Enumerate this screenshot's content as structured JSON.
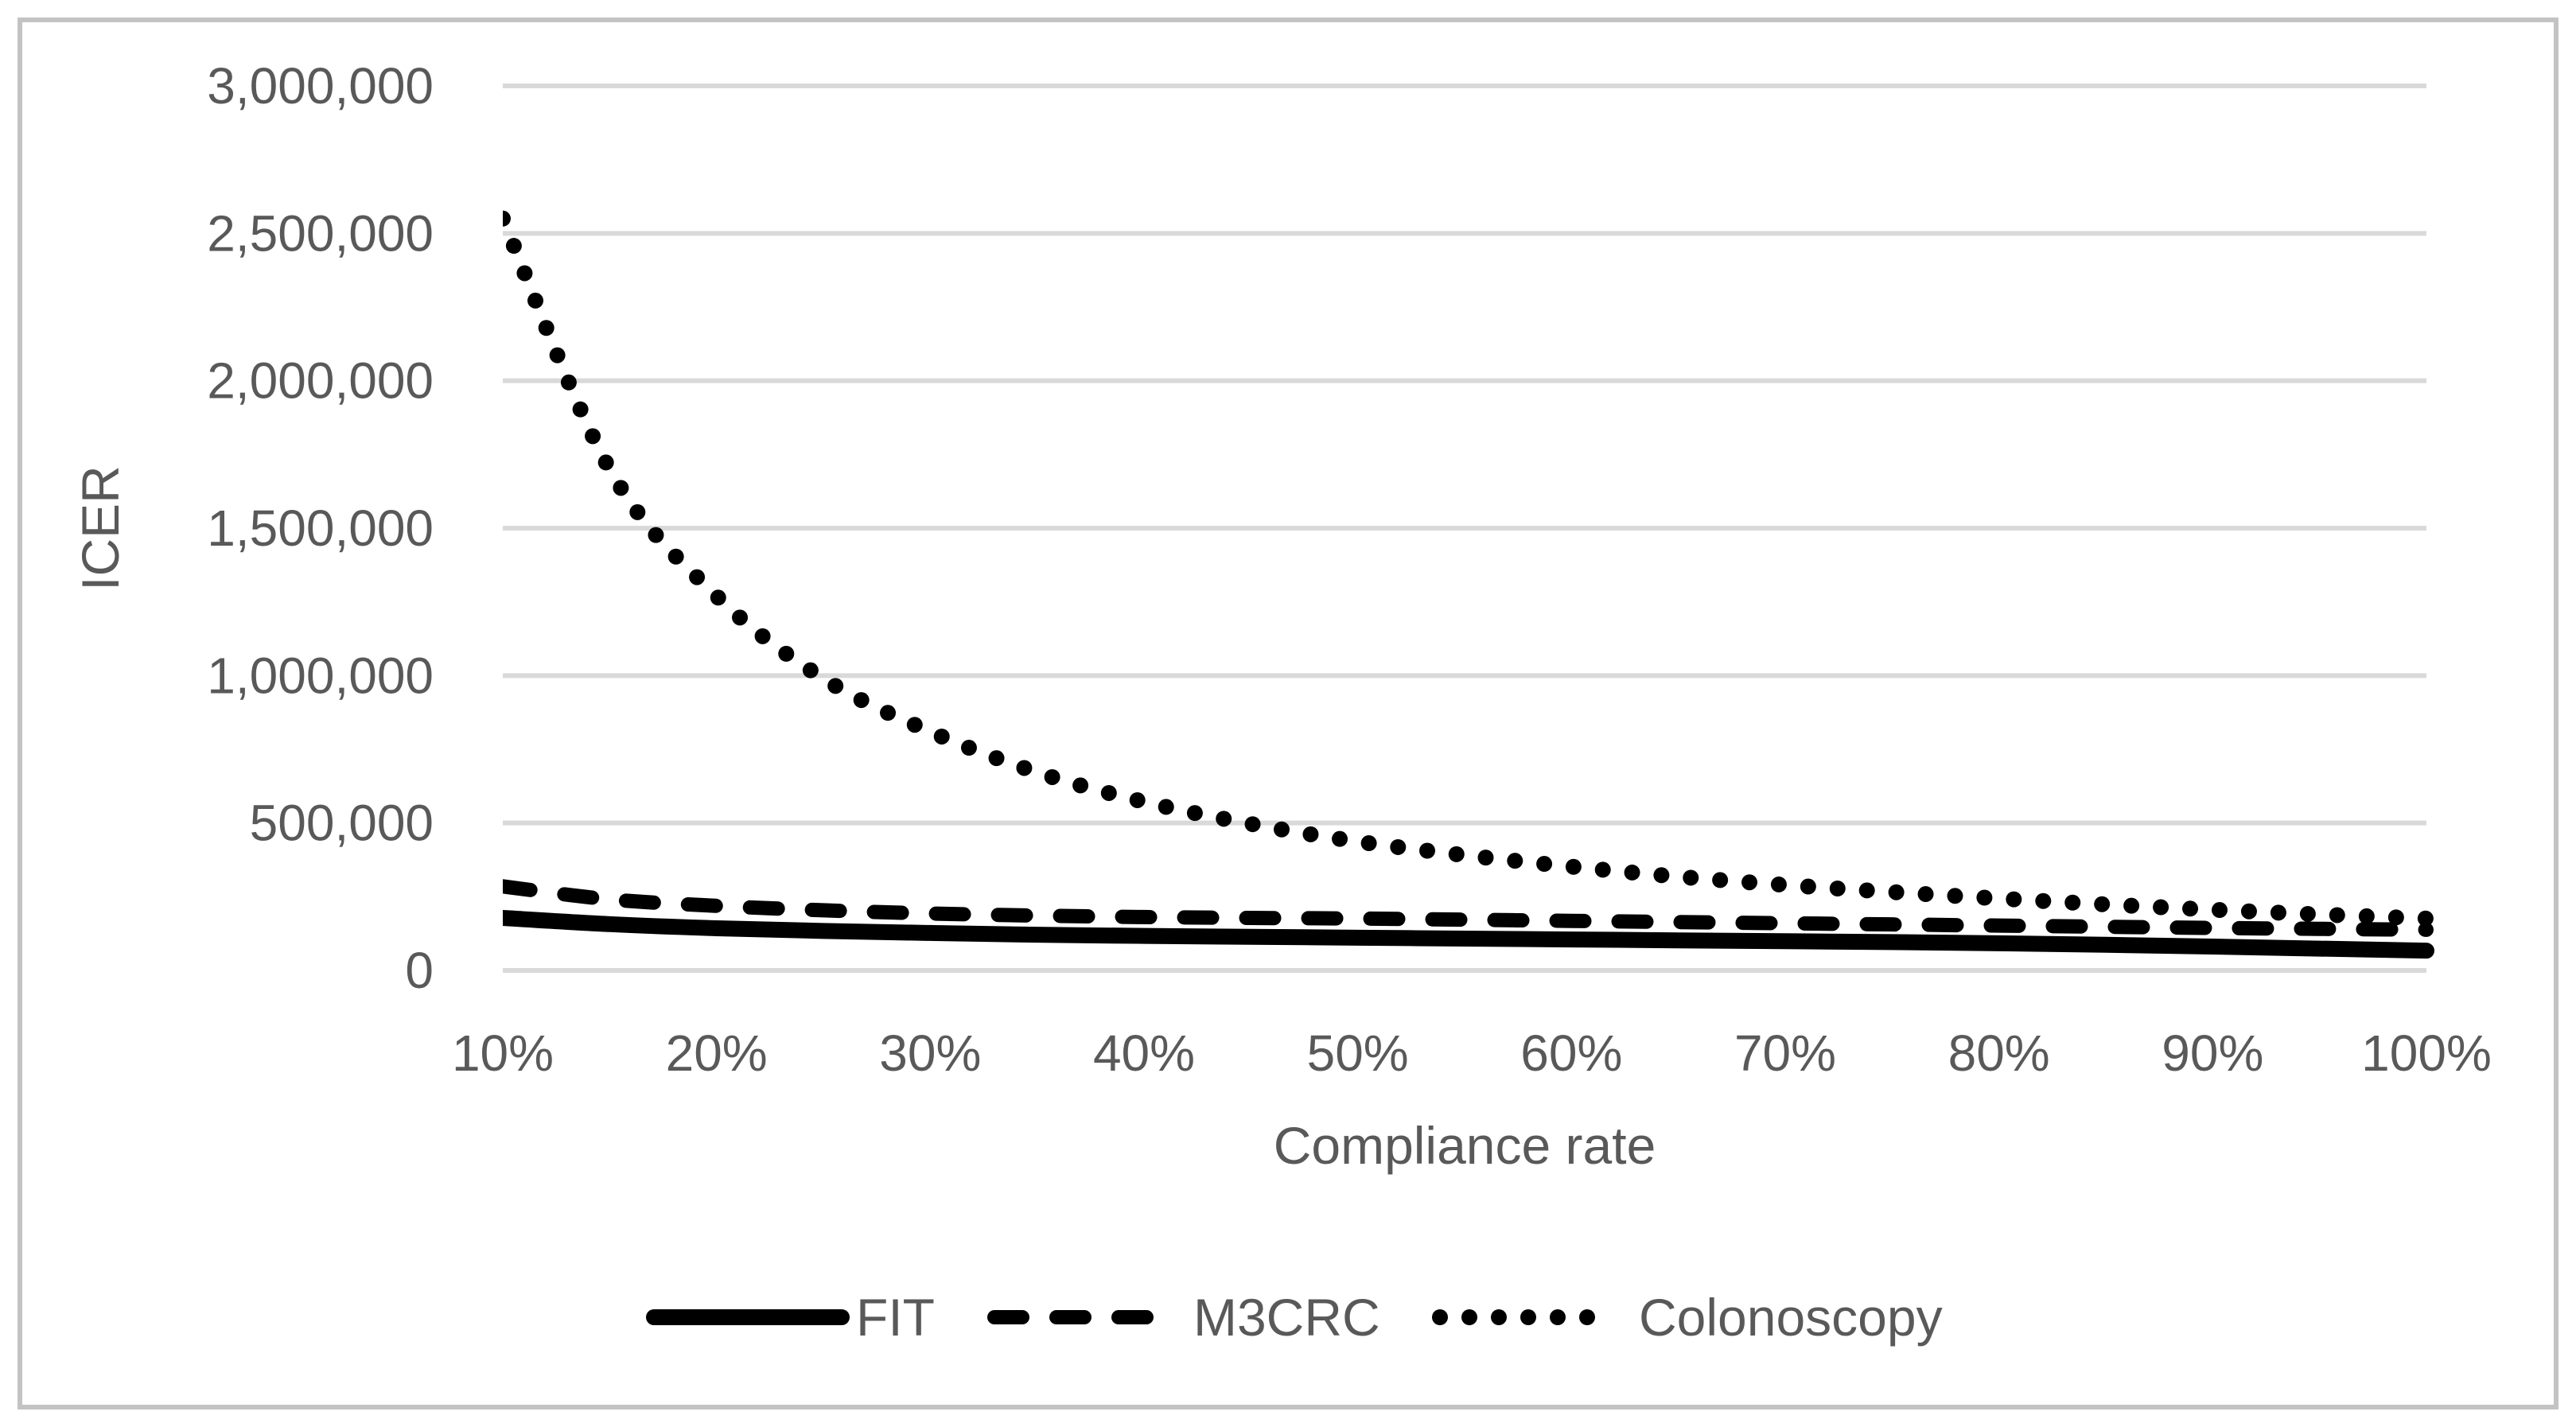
{
  "figure": {
    "background": "#ffffff",
    "border_color": "#c3c3c3",
    "text_color": "#595959",
    "gridline_color": "#d9d9d9",
    "series_color": "#000000"
  },
  "chart_data": {
    "type": "line",
    "title": "",
    "xlabel": "Compliance rate",
    "ylabel": "ICER",
    "x_axis": {
      "ticks": [
        "10%",
        "20%",
        "30%",
        "40%",
        "50%",
        "60%",
        "70%",
        "80%",
        "90%",
        "100%"
      ],
      "tick_pcts": [
        10,
        20,
        30,
        40,
        50,
        60,
        70,
        80,
        90,
        100
      ]
    },
    "y_axis": {
      "ticks": [
        "0",
        "500,000",
        "1,000,000",
        "1,500,000",
        "2,000,000",
        "2,500,000",
        "3,000,000"
      ],
      "min": 0,
      "max": 3000000,
      "gridline_step": 500000,
      "grid": true
    },
    "x_pct": [
      10,
      15,
      20,
      25,
      30,
      35,
      40,
      45,
      50,
      55,
      60,
      65,
      70,
      75,
      80,
      85,
      90,
      95,
      100
    ],
    "series": [
      {
        "name": "FIT",
        "style": "solid",
        "color": "#000000",
        "values": [
          178000,
          157000,
          143000,
          134000,
          127000,
          121000,
          117000,
          114000,
          111000,
          108000,
          105000,
          102000,
          99000,
          96000,
          92000,
          87000,
          81000,
          74000,
          67000
        ]
      },
      {
        "name": "M3CRC",
        "style": "dashed",
        "color": "#000000",
        "values": [
          285000,
          241000,
          219000,
          204000,
          193000,
          186000,
          181000,
          178000,
          176000,
          172000,
          168000,
          164000,
          160000,
          156000,
          152000,
          148000,
          144000,
          141000,
          138000
        ]
      },
      {
        "name": "Colonoscopy",
        "style": "dotted",
        "color": "#000000",
        "values": [
          2550000,
          1700000,
          1270000,
          990000,
          810000,
          672000,
          572000,
          497000,
          437000,
          391000,
          352000,
          318000,
          290000,
          266000,
          244000,
          224000,
          206000,
          190000,
          176000
        ]
      }
    ],
    "legend": [
      "FIT",
      "M3CRC",
      "Colonoscopy"
    ],
    "legend_position": "bottom"
  }
}
